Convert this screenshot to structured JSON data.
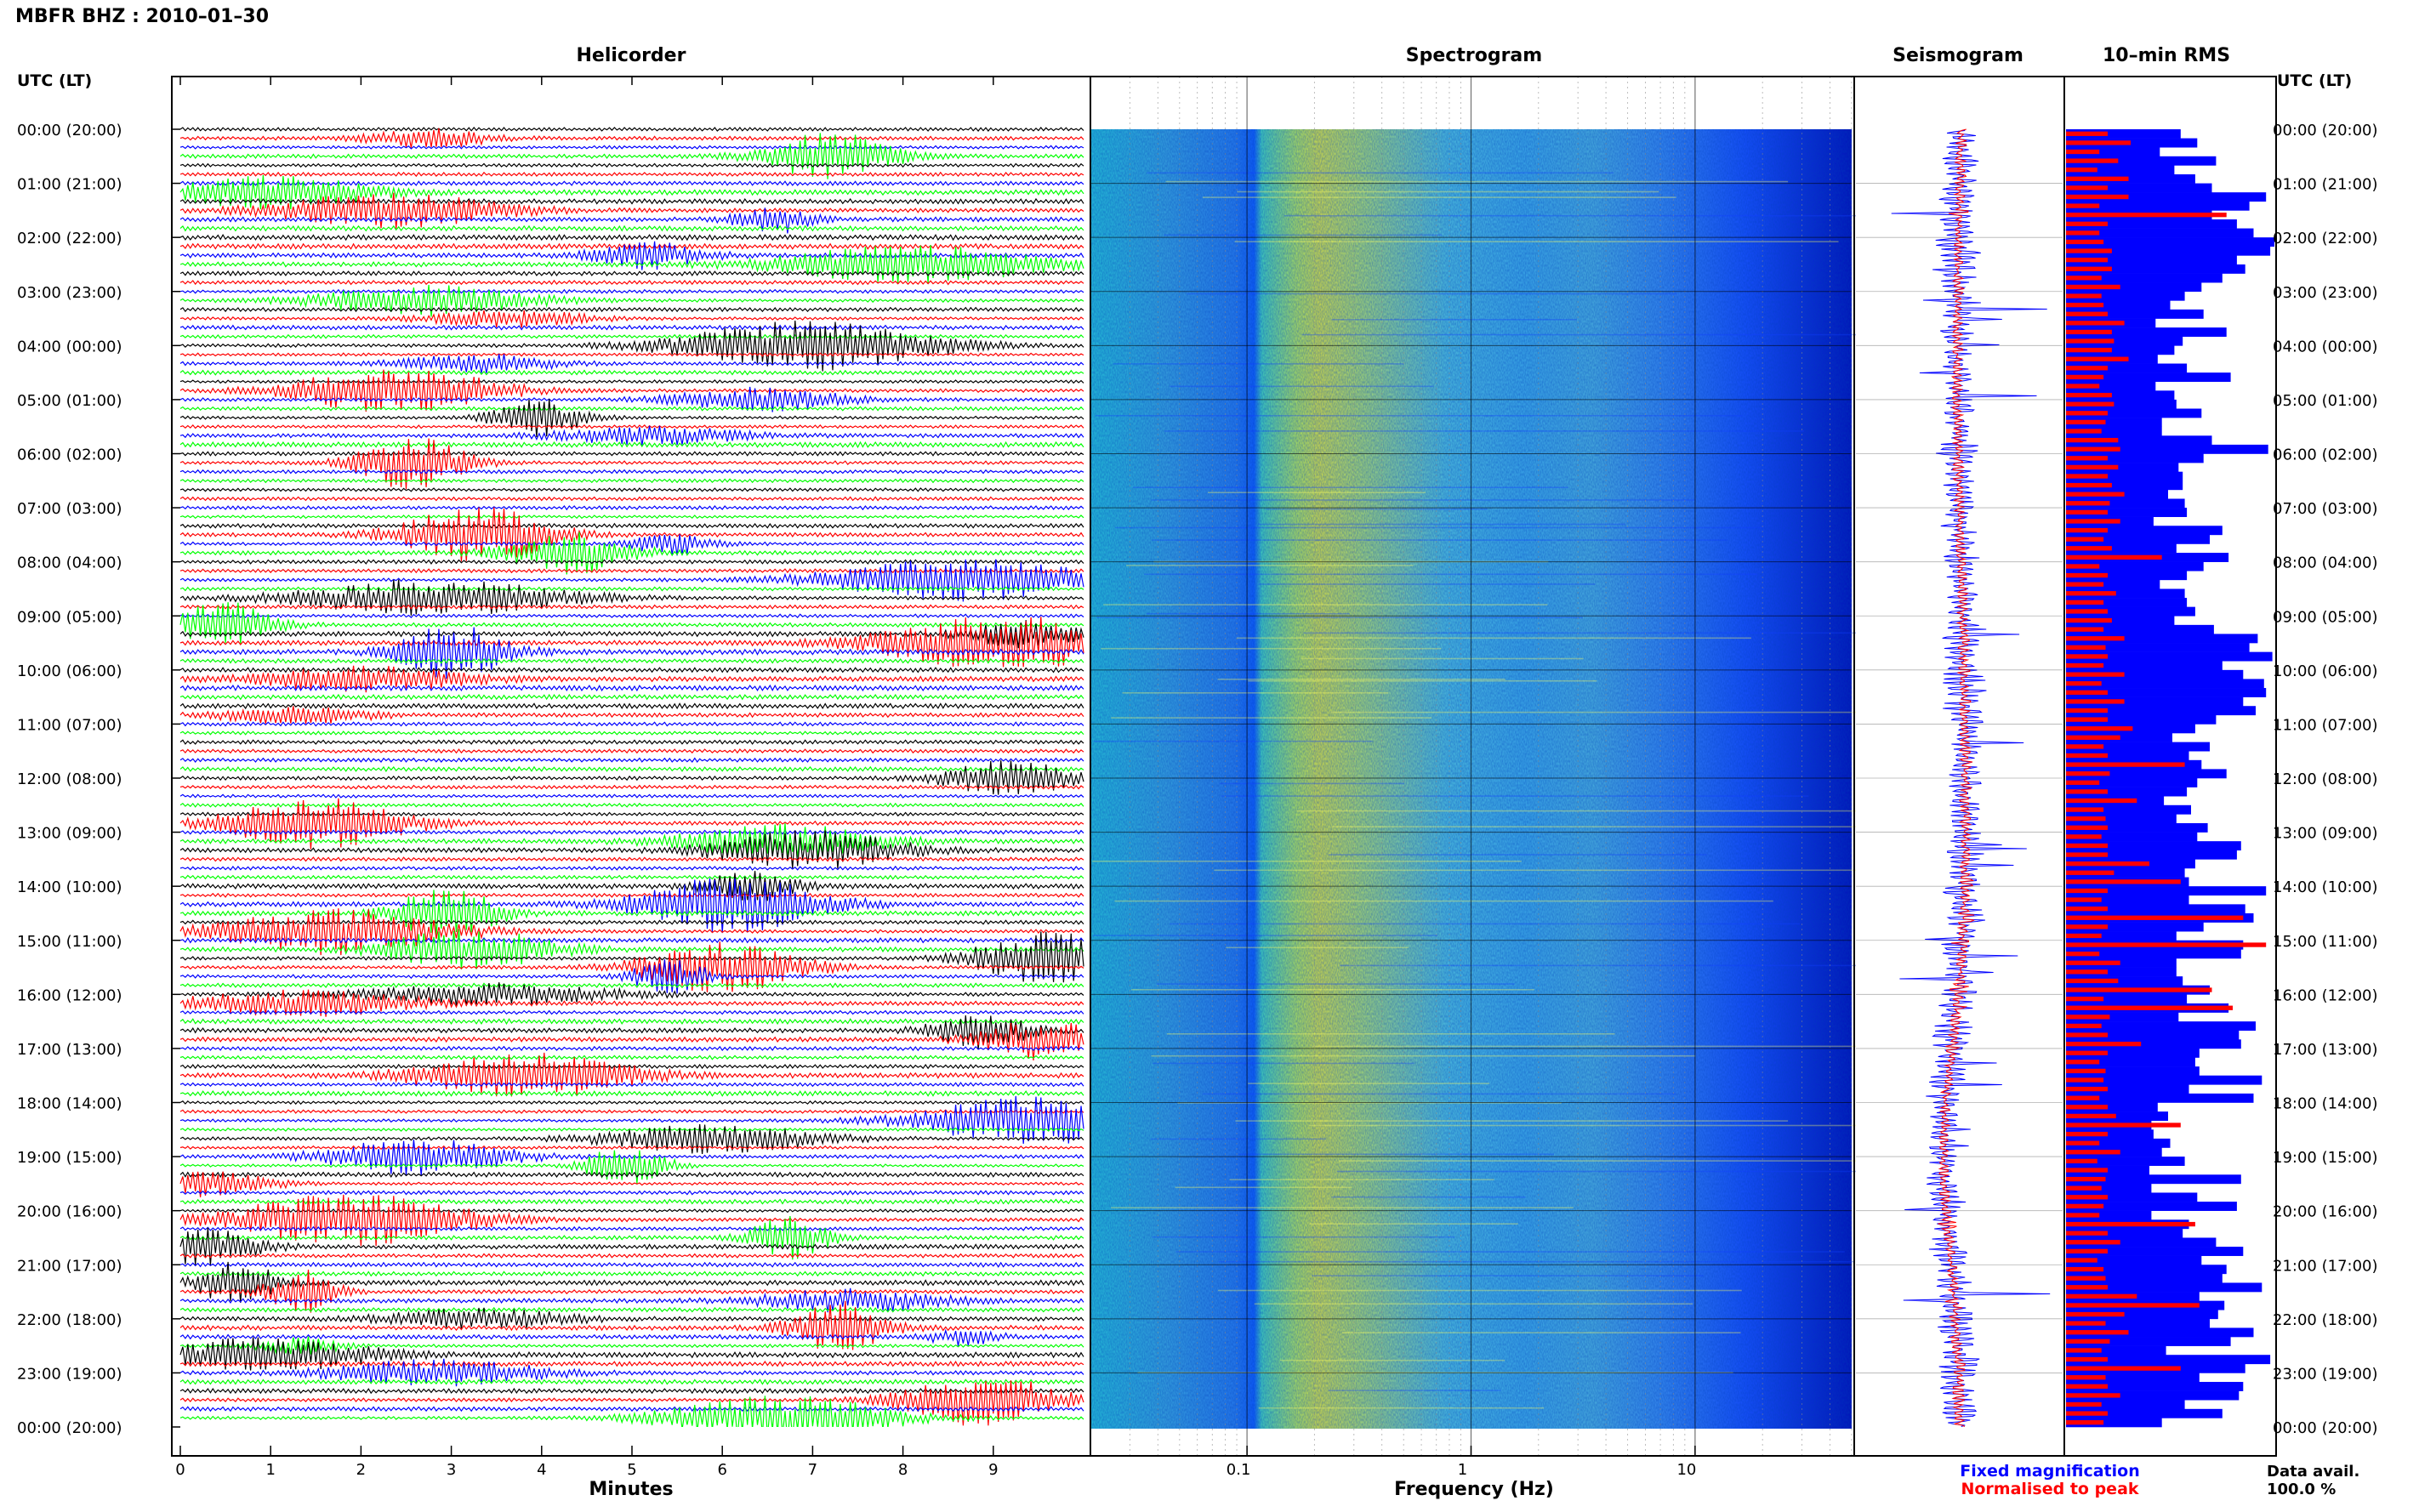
{
  "header": {
    "title": "MBFR BHZ : 2010–01–30"
  },
  "panels": {
    "helicorder": "Helicorder",
    "spectrogram": "Spectrogram",
    "seismogram": "Seismogram",
    "rms": "10–min RMS"
  },
  "time_axis": {
    "header": "UTC (LT)",
    "labels": [
      "00:00 (20:00)",
      "01:00 (21:00)",
      "02:00 (22:00)",
      "03:00 (23:00)",
      "04:00 (00:00)",
      "05:00 (01:00)",
      "06:00 (02:00)",
      "07:00 (03:00)",
      "08:00 (04:00)",
      "09:00 (05:00)",
      "10:00 (06:00)",
      "11:00 (07:00)",
      "12:00 (08:00)",
      "13:00 (09:00)",
      "14:00 (10:00)",
      "15:00 (11:00)",
      "16:00 (12:00)",
      "17:00 (13:00)",
      "18:00 (14:00)",
      "19:00 (15:00)",
      "20:00 (16:00)",
      "21:00 (17:00)",
      "22:00 (18:00)",
      "23:00 (19:00)",
      "00:00 (20:00)"
    ]
  },
  "minutes_axis": {
    "label": "Minutes",
    "ticks": [
      "0",
      "1",
      "2",
      "3",
      "4",
      "5",
      "6",
      "7",
      "8",
      "9"
    ]
  },
  "freq_axis": {
    "label": "Frequency (Hz)",
    "ticks": [
      "0.1",
      "1",
      "10"
    ]
  },
  "legend": {
    "blue": "Fixed magnification",
    "red": "Normalised to peak"
  },
  "availability": {
    "label": "Data avail.",
    "value": "100.0 %"
  },
  "colors": {
    "black": "#000000",
    "red": "#ff0000",
    "blue": "#0000ff",
    "green": "#00ff00"
  },
  "chart_data": {
    "type": "helicorder_spectrogram_rms",
    "hours": 24,
    "minutes_per_row": 10,
    "rows": 144,
    "trace_colors": [
      "black",
      "red",
      "blue",
      "green"
    ],
    "minutes_range": [
      0,
      10
    ],
    "freq_range_hz": [
      0.02,
      50
    ],
    "freq_scale": "log",
    "rms_blue": [
      0.55,
      0.63,
      0.45,
      0.72,
      0.52,
      0.62,
      0.7,
      0.96,
      0.88,
      0.7,
      0.82,
      0.9,
      1.0,
      0.98,
      0.82,
      0.86,
      0.75,
      0.65,
      0.57,
      0.5,
      0.66,
      0.43,
      0.77,
      0.56,
      0.52,
      0.44,
      0.58,
      0.79,
      0.43,
      0.52,
      0.53,
      0.65,
      0.46,
      0.46,
      0.7,
      0.97,
      0.66,
      0.54,
      0.56,
      0.56,
      0.49,
      0.57,
      0.58,
      0.42,
      0.75,
      0.69,
      0.53,
      0.78,
      0.66,
      0.58,
      0.45,
      0.57,
      0.58,
      0.62,
      0.52,
      0.71,
      0.92,
      0.88,
      0.99,
      0.75,
      0.85,
      0.95,
      0.96,
      0.85,
      0.91,
      0.72,
      0.62,
      0.51,
      0.69,
      0.59,
      0.65,
      0.77,
      0.63,
      0.58,
      0.47,
      0.6,
      0.53,
      0.68,
      0.63,
      0.84,
      0.82,
      0.62,
      0.57,
      0.59,
      0.96,
      0.59,
      0.86,
      0.9,
      0.66,
      0.53,
      0.85,
      0.84,
      0.53,
      0.53,
      0.56,
      0.69,
      0.58,
      0.78,
      0.54,
      0.91,
      0.83,
      0.84,
      0.64,
      0.62,
      0.64,
      0.94,
      0.59,
      0.9,
      0.44,
      0.49,
      0.41,
      0.42,
      0.5,
      0.46,
      0.57,
      0.4,
      0.84,
      0.41,
      0.63,
      0.82,
      0.41,
      0.59,
      0.56,
      0.72,
      0.85,
      0.65,
      0.77,
      0.75,
      0.94,
      0.64,
      0.76,
      0.73,
      0.69,
      0.9,
      0.79,
      0.48,
      0.98,
      0.86,
      0.64,
      0.85,
      0.83,
      0.57,
      0.75,
      0.46
    ],
    "rms_red": [
      0.2,
      0.31,
      0.16,
      0.25,
      0.15,
      0.3,
      0.2,
      0.3,
      0.16,
      0.77,
      0.2,
      0.16,
      0.18,
      0.22,
      0.2,
      0.22,
      0.17,
      0.26,
      0.17,
      0.18,
      0.2,
      0.28,
      0.22,
      0.23,
      0.22,
      0.3,
      0.2,
      0.18,
      0.16,
      0.22,
      0.23,
      0.2,
      0.19,
      0.17,
      0.25,
      0.26,
      0.2,
      0.25,
      0.2,
      0.22,
      0.28,
      0.21,
      0.2,
      0.26,
      0.2,
      0.18,
      0.22,
      0.46,
      0.16,
      0.2,
      0.18,
      0.24,
      0.18,
      0.2,
      0.22,
      0.18,
      0.28,
      0.19,
      0.2,
      0.18,
      0.28,
      0.17,
      0.2,
      0.28,
      0.2,
      0.2,
      0.32,
      0.26,
      0.18,
      0.2,
      0.57,
      0.21,
      0.16,
      0.2,
      0.34,
      0.18,
      0.19,
      0.2,
      0.17,
      0.2,
      0.2,
      0.4,
      0.23,
      0.55,
      0.2,
      0.17,
      0.2,
      0.85,
      0.2,
      0.17,
      0.96,
      0.16,
      0.26,
      0.2,
      0.25,
      0.7,
      0.18,
      0.8,
      0.21,
      0.17,
      0.2,
      0.36,
      0.2,
      0.16,
      0.19,
      0.18,
      0.2,
      0.16,
      0.2,
      0.24,
      0.55,
      0.2,
      0.16,
      0.26,
      0.15,
      0.2,
      0.19,
      0.17,
      0.2,
      0.18,
      0.16,
      0.62,
      0.2,
      0.26,
      0.2,
      0.15,
      0.18,
      0.19,
      0.2,
      0.34,
      0.64,
      0.28,
      0.19,
      0.3,
      0.21,
      0.17,
      0.2,
      0.55,
      0.19,
      0.2,
      0.26,
      0.17,
      0.2,
      0.18
    ]
  }
}
